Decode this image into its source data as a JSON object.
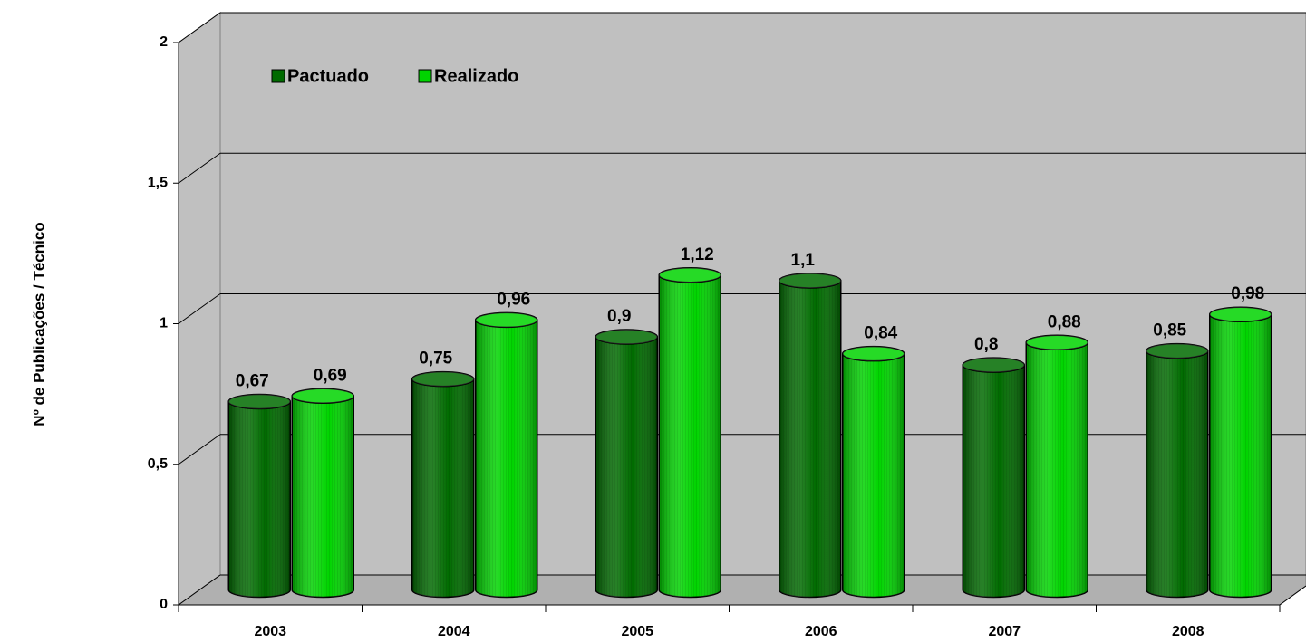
{
  "chart_data": {
    "type": "bar3d",
    "y_axis_label": "Nº de Publicações / Técnico",
    "categories": [
      "2003",
      "2004",
      "2005",
      "2006",
      "2007",
      "2008"
    ],
    "series": [
      {
        "name": "Pactuado",
        "color": "#006b00",
        "values": [
          0.67,
          0.75,
          0.9,
          1.1,
          0.8,
          0.85
        ],
        "value_labels": [
          "0,67",
          "0,75",
          "0,9",
          "1,1",
          "0,8",
          "0,85"
        ]
      },
      {
        "name": "Realizado",
        "color": "#00d400",
        "values": [
          0.69,
          0.96,
          1.12,
          0.84,
          0.88,
          0.98
        ],
        "value_labels": [
          "0,69",
          "0,96",
          "1,12",
          "0,84",
          "0,88",
          "0,98"
        ]
      }
    ],
    "ylim": [
      0,
      2
    ],
    "yticks": [
      0,
      {
        "value": 0.5,
        "label": "0,5"
      },
      1,
      {
        "value": 1.5,
        "label": "1,5"
      },
      2
    ],
    "grid": true,
    "legend": "top-left"
  }
}
